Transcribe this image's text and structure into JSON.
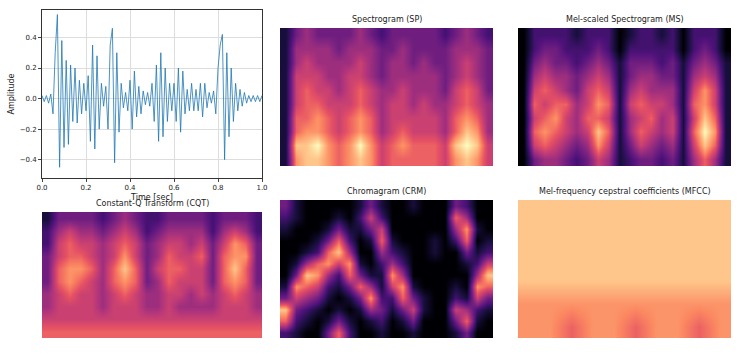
{
  "chart_data": [
    {
      "type": "line",
      "x_label": "Time [sec]",
      "y_label": "Amplitude",
      "color": "#1f77b4",
      "grid": true,
      "xlim": [
        0,
        1
      ],
      "ylim": [
        -0.52,
        0.58
      ],
      "xticks": [
        {
          "value": 0,
          "label": "0.0"
        },
        0.2,
        0.4,
        0.6,
        0.8,
        {
          "value": 1,
          "label": "1.0"
        }
      ],
      "yticks": [
        {
          "value": -0.4,
          "label": "−0.4"
        },
        {
          "value": -0.2,
          "label": "−0.2"
        },
        {
          "value": 0,
          "label": "0.0"
        },
        0.2,
        0.4
      ],
      "x": [
        0,
        0.01,
        0.02,
        0.03,
        0.04,
        0.05,
        0.06,
        0.07,
        0.08,
        0.09,
        0.1,
        0.11,
        0.12,
        0.13,
        0.14,
        0.15,
        0.16,
        0.17,
        0.18,
        0.19,
        0.2,
        0.21,
        0.22,
        0.23,
        0.24,
        0.25,
        0.26,
        0.27,
        0.28,
        0.29,
        0.3,
        0.31,
        0.32,
        0.33,
        0.34,
        0.35,
        0.36,
        0.37,
        0.38,
        0.39,
        0.4,
        0.41,
        0.42,
        0.43,
        0.44,
        0.45,
        0.46,
        0.47,
        0.48,
        0.49,
        0.5,
        0.51,
        0.52,
        0.53,
        0.54,
        0.55,
        0.56,
        0.57,
        0.58,
        0.59,
        0.6,
        0.61,
        0.62,
        0.63,
        0.64,
        0.65,
        0.66,
        0.67,
        0.68,
        0.69,
        0.7,
        0.71,
        0.72,
        0.73,
        0.74,
        0.75,
        0.76,
        0.77,
        0.78,
        0.79,
        0.8,
        0.81,
        0.82,
        0.83,
        0.84,
        0.85,
        0.86,
        0.87,
        0.88,
        0.89,
        0.9,
        0.91,
        0.92,
        0.93,
        0.94,
        0.95,
        0.96,
        0.97,
        0.98,
        0.99,
        1
      ],
      "values": [
        0.02,
        -0.02,
        0.02,
        -0.03,
        0.03,
        -0.1,
        0.3,
        0.55,
        -0.45,
        0.38,
        -0.32,
        0.25,
        -0.3,
        0.22,
        -0.15,
        0.2,
        -0.16,
        0.12,
        -0.1,
        0.1,
        -0.08,
        0.15,
        -0.28,
        0.35,
        -0.33,
        0.28,
        -0.2,
        0.1,
        -0.05,
        0.08,
        -0.2,
        0.35,
        0.46,
        -0.42,
        0.3,
        -0.22,
        0.1,
        -0.06,
        0.04,
        -0.08,
        0.12,
        -0.2,
        0.18,
        -0.12,
        0.08,
        -0.1,
        0.05,
        -0.04,
        0.04,
        -0.05,
        0.1,
        -0.15,
        0.22,
        -0.28,
        0.3,
        -0.25,
        0.2,
        -0.15,
        0.1,
        -0.08,
        0.1,
        -0.15,
        0.2,
        -0.22,
        0.18,
        -0.1,
        0.06,
        -0.08,
        0.1,
        -0.08,
        0.06,
        -0.08,
        0.1,
        -0.12,
        0.1,
        -0.06,
        0.04,
        -0.03,
        0.05,
        -0.1,
        0.2,
        0.35,
        0.42,
        -0.4,
        0.3,
        -0.25,
        0.2,
        -0.15,
        0.1,
        -0.08,
        0.06,
        -0.05,
        0.04,
        -0.03,
        0.02,
        -0.02,
        0.02,
        -0.02,
        0.02,
        -0.02,
        0.02
      ]
    },
    {
      "type": "heatmap",
      "title": "Spectrogram (SP)",
      "tick_labels": false,
      "zlim": [
        0,
        9
      ],
      "z": [
        [
          1,
          7,
          8,
          8,
          7,
          6,
          7,
          8,
          7,
          5,
          6,
          6,
          6,
          6,
          6,
          5,
          7,
          8,
          7,
          5
        ],
        [
          1,
          8,
          8,
          9,
          7,
          6,
          7,
          9,
          7,
          5,
          6,
          7,
          6,
          6,
          6,
          5,
          8,
          9,
          8,
          5
        ],
        [
          1,
          6,
          7,
          7,
          6,
          5,
          6,
          7,
          6,
          4,
          5,
          6,
          5,
          5,
          5,
          4,
          6,
          8,
          7,
          4
        ],
        [
          1,
          6,
          6,
          7,
          6,
          5,
          6,
          7,
          6,
          4,
          5,
          5,
          5,
          5,
          5,
          4,
          6,
          7,
          6,
          4
        ],
        [
          1,
          5,
          6,
          6,
          5,
          5,
          5,
          6,
          5,
          4,
          5,
          5,
          4,
          5,
          4,
          4,
          5,
          6,
          5,
          4
        ],
        [
          1,
          5,
          6,
          5,
          5,
          4,
          5,
          6,
          5,
          4,
          4,
          5,
          4,
          4,
          4,
          3,
          5,
          6,
          5,
          3
        ],
        [
          1,
          5,
          5,
          5,
          4,
          4,
          5,
          5,
          4,
          3,
          4,
          4,
          4,
          4,
          4,
          3,
          4,
          5,
          4,
          3
        ],
        [
          1,
          4,
          5,
          4,
          4,
          4,
          4,
          5,
          4,
          3,
          4,
          4,
          3,
          4,
          3,
          3,
          4,
          5,
          4,
          3
        ],
        [
          1,
          4,
          4,
          4,
          4,
          3,
          4,
          4,
          4,
          3,
          3,
          4,
          3,
          3,
          3,
          3,
          4,
          4,
          4,
          3
        ],
        [
          1,
          3,
          4,
          3,
          3,
          3,
          3,
          4,
          3,
          2,
          3,
          3,
          3,
          3,
          3,
          2,
          3,
          4,
          3,
          2
        ]
      ]
    },
    {
      "type": "heatmap",
      "title": "Mel-scaled Spectrogram (MS)",
      "tick_labels": false,
      "zlim": [
        0,
        9
      ],
      "z": [
        [
          0,
          3,
          4,
          4,
          3,
          2,
          3,
          5,
          4,
          1,
          2,
          3,
          3,
          2,
          3,
          1,
          4,
          6,
          4,
          1
        ],
        [
          0,
          5,
          6,
          5,
          4,
          3,
          4,
          7,
          5,
          1,
          3,
          5,
          4,
          3,
          4,
          1,
          5,
          8,
          6,
          1
        ],
        [
          0,
          6,
          7,
          6,
          5,
          4,
          5,
          8,
          6,
          1,
          4,
          6,
          5,
          4,
          5,
          1,
          6,
          9,
          7,
          1
        ],
        [
          0,
          5,
          6,
          7,
          5,
          4,
          6,
          6,
          5,
          1,
          4,
          5,
          6,
          4,
          5,
          1,
          5,
          8,
          6,
          1
        ],
        [
          0,
          6,
          5,
          6,
          6,
          4,
          5,
          7,
          6,
          1,
          5,
          6,
          5,
          5,
          4,
          1,
          6,
          7,
          5,
          1
        ],
        [
          0,
          5,
          6,
          5,
          4,
          3,
          5,
          6,
          5,
          1,
          4,
          5,
          4,
          4,
          4,
          1,
          5,
          7,
          5,
          1
        ],
        [
          0,
          4,
          5,
          4,
          4,
          3,
          4,
          5,
          4,
          1,
          3,
          4,
          4,
          3,
          3,
          1,
          4,
          5,
          4,
          1
        ],
        [
          0,
          3,
          4,
          3,
          3,
          2,
          3,
          4,
          3,
          1,
          3,
          3,
          3,
          2,
          3,
          1,
          3,
          4,
          3,
          1
        ],
        [
          0,
          2,
          3,
          3,
          2,
          2,
          2,
          3,
          2,
          0,
          2,
          2,
          2,
          2,
          2,
          0,
          2,
          3,
          2,
          0
        ],
        [
          0,
          2,
          2,
          2,
          2,
          1,
          2,
          2,
          2,
          0,
          1,
          2,
          2,
          1,
          2,
          0,
          2,
          2,
          2,
          0
        ]
      ]
    },
    {
      "type": "heatmap",
      "title": "Constant-Q Transform (CQT)",
      "tick_labels": false,
      "zlim": [
        0,
        9
      ],
      "z": [
        [
          6,
          6,
          6,
          6,
          6,
          6,
          6,
          6,
          6,
          6,
          6,
          6,
          6,
          6,
          6,
          6,
          6,
          6,
          6,
          6
        ],
        [
          5,
          5,
          5,
          5,
          5,
          5,
          5,
          5,
          5,
          5,
          5,
          5,
          5,
          5,
          5,
          5,
          5,
          5,
          5,
          5
        ],
        [
          4,
          5,
          5,
          5,
          5,
          4,
          5,
          5,
          5,
          4,
          4,
          5,
          4,
          4,
          4,
          4,
          5,
          5,
          5,
          4
        ],
        [
          4,
          5,
          6,
          5,
          5,
          4,
          5,
          6,
          5,
          4,
          4,
          5,
          5,
          4,
          5,
          4,
          5,
          6,
          5,
          4
        ],
        [
          3,
          6,
          7,
          6,
          5,
          4,
          6,
          7,
          6,
          3,
          4,
          6,
          5,
          5,
          5,
          3,
          6,
          7,
          6,
          3
        ],
        [
          3,
          6,
          7,
          7,
          6,
          4,
          6,
          8,
          6,
          3,
          5,
          6,
          6,
          5,
          5,
          3,
          6,
          8,
          6,
          3
        ],
        [
          3,
          5,
          6,
          6,
          5,
          4,
          5,
          7,
          5,
          3,
          4,
          6,
          5,
          5,
          6,
          3,
          6,
          7,
          7,
          3
        ],
        [
          2,
          5,
          6,
          5,
          5,
          4,
          5,
          6,
          5,
          3,
          4,
          5,
          5,
          4,
          5,
          3,
          5,
          7,
          6,
          3
        ],
        [
          2,
          4,
          5,
          4,
          4,
          3,
          4,
          5,
          4,
          2,
          3,
          4,
          4,
          4,
          4,
          2,
          4,
          5,
          4,
          2
        ],
        [
          1,
          3,
          3,
          3,
          3,
          2,
          3,
          4,
          3,
          2,
          2,
          3,
          3,
          3,
          3,
          2,
          3,
          3,
          3,
          2
        ]
      ]
    },
    {
      "type": "heatmap",
      "title": "Chromagram (CRM)",
      "tick_labels": false,
      "zlim": [
        0,
        9
      ],
      "z": [
        [
          2,
          1,
          0,
          0,
          3,
          6,
          2,
          0,
          0,
          1,
          0,
          0,
          1,
          0,
          0,
          0,
          1,
          3,
          0,
          0
        ],
        [
          6,
          2,
          1,
          0,
          1,
          3,
          1,
          0,
          1,
          2,
          0,
          1,
          3,
          0,
          0,
          0,
          3,
          6,
          1,
          0
        ],
        [
          8,
          3,
          2,
          1,
          0,
          1,
          0,
          1,
          4,
          3,
          1,
          3,
          5,
          1,
          0,
          0,
          5,
          4,
          2,
          1
        ],
        [
          3,
          5,
          4,
          3,
          1,
          0,
          1,
          3,
          7,
          2,
          2,
          6,
          3,
          1,
          0,
          0,
          2,
          1,
          5,
          3
        ],
        [
          1,
          7,
          6,
          5,
          2,
          1,
          3,
          6,
          4,
          1,
          5,
          7,
          1,
          0,
          0,
          0,
          1,
          0,
          7,
          6
        ],
        [
          0,
          3,
          8,
          7,
          4,
          2,
          6,
          3,
          1,
          1,
          7,
          4,
          0,
          0,
          0,
          0,
          0,
          0,
          4,
          8
        ],
        [
          0,
          1,
          4,
          6,
          7,
          5,
          7,
          1,
          0,
          2,
          4,
          2,
          0,
          0,
          0,
          0,
          0,
          1,
          2,
          5
        ],
        [
          0,
          0,
          1,
          2,
          6,
          8,
          4,
          0,
          0,
          4,
          2,
          1,
          0,
          0,
          1,
          0,
          0,
          3,
          1,
          2
        ],
        [
          0,
          0,
          0,
          1,
          3,
          6,
          2,
          0,
          1,
          6,
          1,
          0,
          0,
          0,
          1,
          0,
          2,
          6,
          0,
          1
        ],
        [
          1,
          0,
          0,
          0,
          1,
          3,
          1,
          1,
          3,
          5,
          0,
          0,
          0,
          0,
          0,
          0,
          4,
          7,
          1,
          0
        ],
        [
          2,
          1,
          0,
          0,
          0,
          1,
          0,
          2,
          5,
          2,
          0,
          0,
          0,
          0,
          0,
          0,
          6,
          4,
          0,
          0
        ],
        [
          3,
          1,
          0,
          0,
          0,
          0,
          0,
          1,
          3,
          1,
          0,
          0,
          1,
          0,
          0,
          0,
          3,
          2,
          0,
          0
        ]
      ]
    },
    {
      "type": "heatmap",
      "title": "Mel-frequency cepstral coefficients (MFCC)",
      "tick_labels": false,
      "zlim": [
        0,
        9
      ],
      "z": [
        [
          7,
          7,
          6,
          7,
          7,
          6,
          7,
          7,
          6,
          7
        ],
        [
          7,
          7,
          7,
          7,
          7,
          7,
          7,
          7,
          7,
          7
        ],
        [
          8,
          8,
          8,
          8,
          8,
          8,
          8,
          8,
          8,
          8
        ],
        [
          8,
          8,
          8,
          8,
          8,
          8,
          8,
          8,
          8,
          8
        ],
        [
          8,
          8,
          8,
          8,
          8,
          8,
          8,
          8,
          8,
          8
        ],
        [
          8,
          8,
          8,
          8,
          8,
          8,
          8,
          8,
          8,
          8
        ]
      ]
    }
  ]
}
